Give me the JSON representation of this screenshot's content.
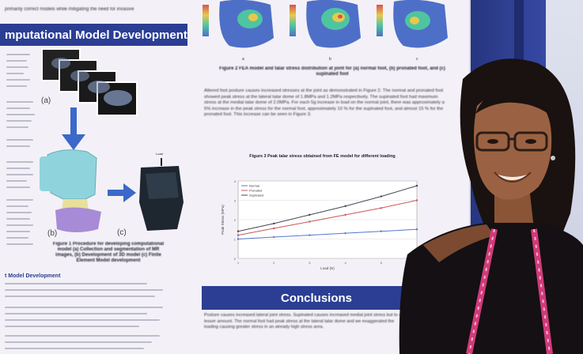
{
  "poster": {
    "top_fragment": "primarily correct models while mitigating the need for invasive",
    "left_section_title": "mputational Model Development",
    "left_bottom_heading": "t Model Development",
    "fig1_panel_a": "(a)",
    "fig1_panel_b": "(b)",
    "fig1_panel_c": "(c)",
    "fig1_load": "Load",
    "fig1_caption": "Figure 1 Procedure for developing computational model (a) Collection and segmentation of MR images, (b) Development of 3D model (c) Finite Element Model development",
    "fig_top_caption": "Figure 2 FEA model and talar stress distribution at joint for (a) normal foot, (b) pronated foot, and (c) supinated foot",
    "results_paragraph": "Altered foot posture causes increased stresses at the joint as demonstrated in Figure 2. The normal and pronated foot showed peak stress at the lateral talar dome of 1.8MPa and 1.2MPa respectively. The supinated foot had maximum stress at the medial talar dome of 2.0MPa. For each 5g increase in load on the normal joint, there was approximately a 5% increase in the peak stress for the normal foot, approximately 10 % for the supinated foot, and almost 15 % for the pronated foot. This increase can be seen in Figure 3.",
    "conclusions_title": "Conclusions",
    "conclusions_body": "Posture causes increased lateral joint stress. Supinated causes increased medial joint stress but to a lesser amount. The normal foot had peak stress at the lateral talar dome and we exaggerated the loading causing greater stress in an already high stress area."
  },
  "chart_data": {
    "type": "line",
    "title": "Figure 3 Peak talar stress obtained from FE model for different loading",
    "xlabel": "Load (N)",
    "ylabel": "Peak Stress (MPa)",
    "series": [
      {
        "name": "Normal",
        "values": [
          1.0,
          1.1,
          1.2,
          1.3,
          1.4,
          1.5
        ]
      },
      {
        "name": "Pronated",
        "values": [
          1.2,
          1.55,
          1.9,
          2.25,
          2.6,
          3.0
        ]
      },
      {
        "name": "Supinated",
        "values": [
          1.4,
          1.8,
          2.25,
          2.7,
          3.2,
          3.75
        ]
      }
    ],
    "categories": [
      "1",
      "2",
      "3",
      "4",
      "5",
      "6"
    ],
    "ylim": [
      0,
      4
    ],
    "grid": true,
    "legend": "top-left",
    "colors": [
      "#5577cc",
      "#cc5555",
      "#444455"
    ]
  },
  "colors": {
    "header_blue": "#2b3e94",
    "board_blue": "#2f3f90",
    "poster_bg": "#f3f1f7"
  }
}
